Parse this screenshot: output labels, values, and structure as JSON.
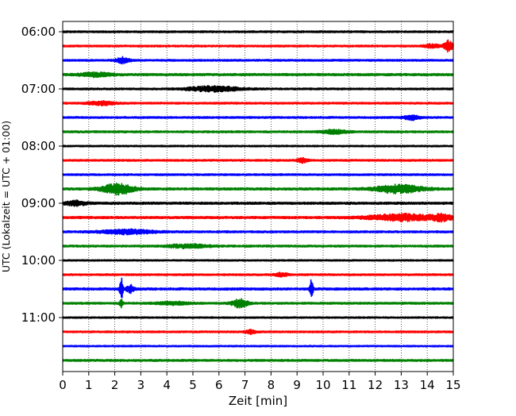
{
  "chart_data": {
    "type": "line",
    "subtype": "helicorder-seismogram",
    "title": "",
    "xlabel": "Zeit  [min]",
    "ylabel": "UTC (Lokalzeit = UTC + 01:00)",
    "xlim": [
      0,
      15
    ],
    "x_ticks": [
      0,
      1,
      2,
      3,
      4,
      5,
      6,
      7,
      8,
      9,
      10,
      11,
      12,
      13,
      14,
      15
    ],
    "x_tick_labels": [
      "0",
      "1",
      "2",
      "3",
      "4",
      "5",
      "6",
      "7",
      "8",
      "9",
      "10",
      "11",
      "12",
      "13",
      "14",
      "15"
    ],
    "y_tick_labels": [
      "06:00",
      "07:00",
      "08:00",
      "09:00",
      "10:00",
      "11:00"
    ],
    "y_tick_rows": [
      0,
      4,
      8,
      12,
      16,
      20
    ],
    "grid": {
      "x": "dotted",
      "y": false
    },
    "trace_colors": [
      "#000000",
      "#ff0000",
      "#0000ff",
      "#008000"
    ],
    "traces": [
      {
        "start": "06:00",
        "color": "#000000",
        "base": 0.12,
        "events": []
      },
      {
        "start": "06:15",
        "color": "#ff0000",
        "base": 0.12,
        "events": [
          {
            "t": 14.8,
            "amp": 0.75,
            "dur": 0.35
          },
          {
            "t": 14.2,
            "amp": 0.25,
            "dur": 0.6
          }
        ]
      },
      {
        "start": "06:30",
        "color": "#0000ff",
        "base": 0.12,
        "events": [
          {
            "t": 2.3,
            "amp": 0.4,
            "dur": 0.5
          }
        ]
      },
      {
        "start": "06:45",
        "color": "#008000",
        "base": 0.15,
        "events": [
          {
            "t": 1.3,
            "amp": 0.25,
            "dur": 1.2
          }
        ]
      },
      {
        "start": "07:00",
        "color": "#000000",
        "base": 0.12,
        "events": [
          {
            "t": 5.8,
            "amp": 0.35,
            "dur": 2.0
          }
        ]
      },
      {
        "start": "07:15",
        "color": "#ff0000",
        "base": 0.12,
        "events": [
          {
            "t": 1.5,
            "amp": 0.25,
            "dur": 1.0
          }
        ]
      },
      {
        "start": "07:30",
        "color": "#0000ff",
        "base": 0.12,
        "events": [
          {
            "t": 13.4,
            "amp": 0.3,
            "dur": 0.6
          }
        ]
      },
      {
        "start": "07:45",
        "color": "#008000",
        "base": 0.13,
        "events": [
          {
            "t": 10.4,
            "amp": 0.25,
            "dur": 1.0
          }
        ]
      },
      {
        "start": "08:00",
        "color": "#000000",
        "base": 0.1,
        "events": []
      },
      {
        "start": "08:15",
        "color": "#ff0000",
        "base": 0.12,
        "events": [
          {
            "t": 9.2,
            "amp": 0.3,
            "dur": 0.4
          }
        ]
      },
      {
        "start": "08:30",
        "color": "#0000ff",
        "base": 0.12,
        "events": []
      },
      {
        "start": "08:45",
        "color": "#008000",
        "base": 0.15,
        "events": [
          {
            "t": 2.1,
            "amp": 0.75,
            "dur": 1.2
          },
          {
            "t": 12.9,
            "amp": 0.55,
            "dur": 1.8
          }
        ]
      },
      {
        "start": "09:00",
        "color": "#000000",
        "base": 0.15,
        "events": [
          {
            "t": 0.5,
            "amp": 0.3,
            "dur": 0.8
          }
        ]
      },
      {
        "start": "09:15",
        "color": "#ff0000",
        "base": 0.15,
        "events": [
          {
            "t": 13.0,
            "amp": 0.45,
            "dur": 2.5
          },
          {
            "t": 14.6,
            "amp": 0.4,
            "dur": 0.8
          }
        ]
      },
      {
        "start": "09:30",
        "color": "#0000ff",
        "base": 0.13,
        "events": [
          {
            "t": 2.5,
            "amp": 0.3,
            "dur": 2.0
          }
        ]
      },
      {
        "start": "09:45",
        "color": "#008000",
        "base": 0.13,
        "events": [
          {
            "t": 4.8,
            "amp": 0.25,
            "dur": 1.5
          }
        ]
      },
      {
        "start": "10:00",
        "color": "#000000",
        "base": 0.1,
        "events": []
      },
      {
        "start": "10:15",
        "color": "#ff0000",
        "base": 0.12,
        "events": [
          {
            "t": 8.4,
            "amp": 0.25,
            "dur": 0.5
          }
        ]
      },
      {
        "start": "10:30",
        "color": "#0000ff",
        "base": 0.15,
        "events": [
          {
            "t": 2.25,
            "amp": 1.5,
            "dur": 0.12
          },
          {
            "t": 2.6,
            "amp": 0.5,
            "dur": 0.3
          },
          {
            "t": 9.55,
            "amp": 1.3,
            "dur": 0.12
          }
        ]
      },
      {
        "start": "10:45",
        "color": "#008000",
        "base": 0.13,
        "events": [
          {
            "t": 2.25,
            "amp": 0.7,
            "dur": 0.12
          },
          {
            "t": 6.8,
            "amp": 0.55,
            "dur": 0.6
          },
          {
            "t": 4.2,
            "amp": 0.2,
            "dur": 1.2
          }
        ]
      },
      {
        "start": "11:00",
        "color": "#000000",
        "base": 0.1,
        "events": []
      },
      {
        "start": "11:15",
        "color": "#ff0000",
        "base": 0.12,
        "events": [
          {
            "t": 7.2,
            "amp": 0.25,
            "dur": 0.4
          }
        ]
      },
      {
        "start": "11:30",
        "color": "#0000ff",
        "base": 0.1,
        "events": []
      },
      {
        "start": "11:45",
        "color": "#008000",
        "base": 0.13,
        "events": []
      }
    ]
  }
}
